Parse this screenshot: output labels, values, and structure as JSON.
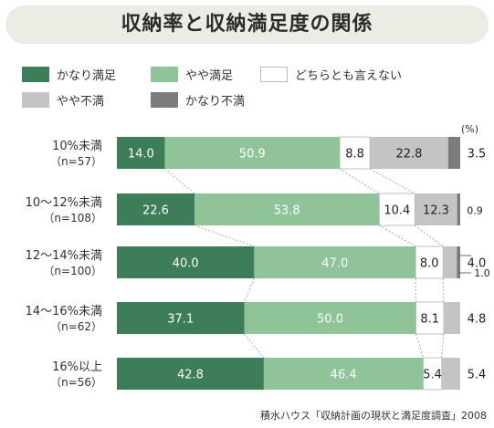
{
  "title": "収納率と収納満足度の関係",
  "unit": "(%)",
  "source": "積水ハウス「収納計画の現状と満足度調査」2008",
  "legend": [
    {
      "label": "かなり満足",
      "color": "#3d7e59"
    },
    {
      "label": "やや満足",
      "color": "#8fc498"
    },
    {
      "label": "どちらとも言えない",
      "color": "#ffffff"
    },
    {
      "label": "やや不満",
      "color": "#c4c4c4"
    },
    {
      "label": "かなり不満",
      "color": "#7b7b7b"
    }
  ],
  "chart_data": {
    "type": "bar",
    "stacked": true,
    "orientation": "horizontal",
    "categories": [
      {
        "label": "10%未満",
        "n": "（n=57）"
      },
      {
        "label": "10〜12%未満",
        "n": "（n=108）"
      },
      {
        "label": "12〜14%未満",
        "n": "（n=100）"
      },
      {
        "label": "14〜16%未満",
        "n": "（n=62）"
      },
      {
        "label": "16%以上",
        "n": "（n=56）"
      }
    ],
    "series": [
      {
        "name": "かなり満足",
        "values": [
          14.0,
          22.6,
          40.0,
          37.1,
          42.8
        ],
        "labels": [
          "14.0",
          "22.6",
          "40.0",
          "37.1",
          "42.8"
        ]
      },
      {
        "name": "やや満足",
        "values": [
          50.9,
          53.8,
          47.0,
          50.0,
          46.4
        ],
        "labels": [
          "50.9",
          "53.8",
          "47.0",
          "50.0",
          "46.4"
        ]
      },
      {
        "name": "どちらとも言えない",
        "values": [
          8.8,
          10.4,
          8.0,
          8.1,
          5.4
        ],
        "labels": [
          "8.8",
          "10.4",
          "8.0",
          "8.1",
          "5.4"
        ]
      },
      {
        "name": "やや不満",
        "values": [
          22.8,
          12.3,
          4.0,
          4.8,
          5.4
        ],
        "labels": [
          "22.8",
          "12.3",
          "4.0",
          "4.8",
          "5.4"
        ]
      },
      {
        "name": "かなり不満",
        "values": [
          3.5,
          0.9,
          1.0,
          0.0,
          0.0
        ],
        "labels": [
          "3.5",
          "0.9",
          "1.0",
          "",
          ""
        ]
      }
    ],
    "xlim": [
      0,
      100
    ]
  }
}
